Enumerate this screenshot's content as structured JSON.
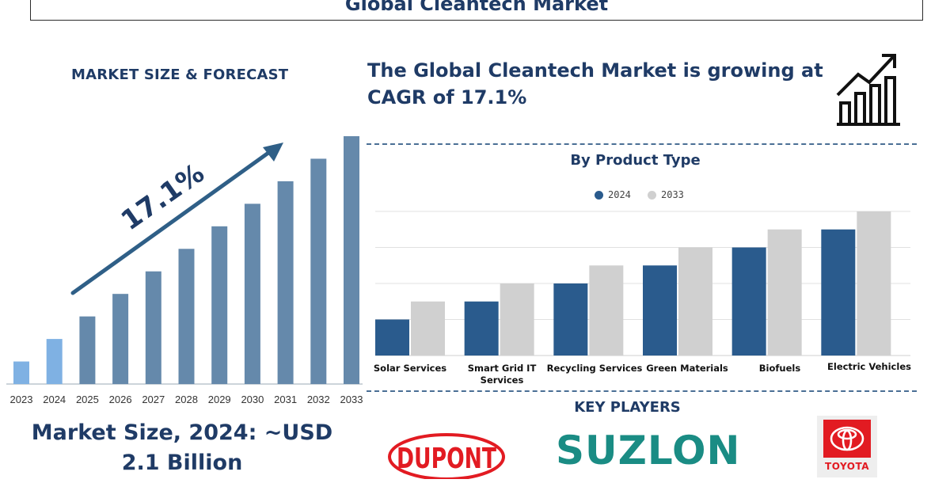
{
  "header": {
    "title": "Global Cleantech Market"
  },
  "left_panel": {
    "subtitle": "MARKET SIZE & FORECAST",
    "growth_label": "17.1%",
    "market_size_line1": "Market Size, 2024: ~USD",
    "market_size_line2": "2.1 Billion",
    "colors": {
      "light_bar": "#7fb1e3",
      "dark_bar": "#6589ab",
      "arrow": "#2f5f87"
    }
  },
  "headline": "The Global Cleantech Market is growing at CAGR of 17.1%",
  "growth_icon": "bar-chart-up-arrow-icon",
  "by_product": {
    "title": "By Product Type"
  },
  "key_players": {
    "title": "KEY PLAYERS",
    "logos": [
      {
        "name": "DUPONT",
        "icon": "dupont-logo",
        "color": "#e21b22"
      },
      {
        "name": "SUZLON",
        "icon": "suzlon-logo",
        "color": "#1a8c84"
      },
      {
        "name": "TOYOTA",
        "icon": "toyota-logo",
        "color": "#e21b22"
      }
    ]
  },
  "chart_data": [
    {
      "type": "bar",
      "categories": [
        "2023",
        "2024",
        "2025",
        "2026",
        "2027",
        "2028",
        "2029",
        "2030",
        "2031",
        "2032",
        "2033"
      ],
      "values": [
        1,
        2,
        3,
        4,
        5,
        6,
        7,
        8,
        9,
        10,
        11
      ],
      "highlight_categories": [
        "2023",
        "2024"
      ],
      "title": "",
      "xlabel": "",
      "ylabel": "",
      "ylim": [
        0,
        11
      ],
      "grid": false
    },
    {
      "type": "bar",
      "categories": [
        "Solar Services",
        "Smart Grid IT Services",
        "Recycling Services",
        "Green Materials",
        "Biofuels",
        "Electric Vehicles"
      ],
      "category_lines": [
        [
          "Solar Services"
        ],
        [
          "Smart Grid IT",
          "Services"
        ],
        [
          "Recycling Services"
        ],
        [
          "Green Materials"
        ],
        [
          "Biofuels"
        ],
        [
          "Electric Vehicles"
        ]
      ],
      "series": [
        {
          "name": "2024",
          "color": "#2a5b8d",
          "values": [
            1,
            1.5,
            2,
            2.5,
            3,
            3.5
          ]
        },
        {
          "name": "2033",
          "color": "#d0d0d0",
          "values": [
            1.5,
            2,
            2.5,
            3,
            3.5,
            4
          ]
        }
      ],
      "ylim": [
        0,
        4
      ],
      "grid": true,
      "legend": "top-center"
    }
  ]
}
